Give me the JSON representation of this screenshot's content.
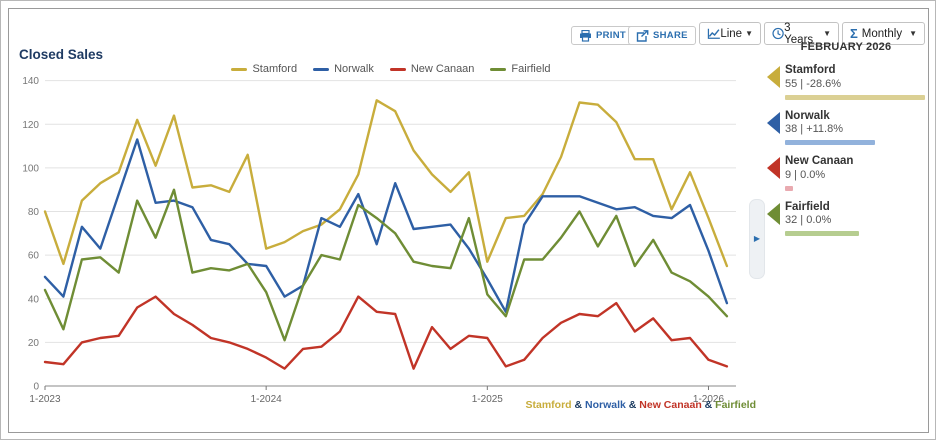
{
  "title": "Closed Sales",
  "toolbar": {
    "print_label": "PRINT",
    "share_label": "SHARE",
    "chart_type_label": "Line",
    "time_range_label": "3 Years",
    "interval_label": "Monthly",
    "accent_color": "#2c6faf"
  },
  "chart_data": {
    "type": "line",
    "title": "Closed Sales",
    "x": [
      "1-2023",
      "2-2023",
      "3-2023",
      "4-2023",
      "5-2023",
      "6-2023",
      "7-2023",
      "8-2023",
      "9-2023",
      "10-2023",
      "11-2023",
      "12-2023",
      "1-2024",
      "2-2024",
      "3-2024",
      "4-2024",
      "5-2024",
      "6-2024",
      "7-2024",
      "8-2024",
      "9-2024",
      "10-2024",
      "11-2024",
      "12-2024",
      "1-2025",
      "2-2025",
      "3-2025",
      "4-2025",
      "5-2025",
      "6-2025",
      "7-2025",
      "8-2025",
      "9-2025",
      "10-2025",
      "11-2025",
      "12-2025",
      "1-2026",
      "2-2026"
    ],
    "x_tick_labels": [
      {
        "index": 0,
        "label": "1-2023"
      },
      {
        "index": 12,
        "label": "1-2024"
      },
      {
        "index": 24,
        "label": "1-2025"
      },
      {
        "index": 36,
        "label": "1-2026"
      }
    ],
    "ylim": [
      0,
      140
    ],
    "y_tick_step": 20,
    "grid": true,
    "legend_position": "top",
    "series": [
      {
        "name": "Stamford",
        "color": "#c8ad3c",
        "values": [
          80,
          56,
          85,
          93,
          98,
          122,
          101,
          124,
          91,
          92,
          89,
          106,
          63,
          66,
          71,
          74,
          81,
          97,
          131,
          126,
          108,
          97,
          89,
          98,
          57,
          77,
          78,
          88,
          105,
          130,
          129,
          121,
          104,
          104,
          81,
          98,
          77,
          55
        ]
      },
      {
        "name": "Norwalk",
        "color": "#2e5fa5",
        "values": [
          50,
          41,
          73,
          63,
          88,
          113,
          84,
          85,
          82,
          67,
          65,
          56,
          55,
          41,
          46,
          77,
          73,
          88,
          65,
          93,
          72,
          73,
          74,
          63,
          49,
          34,
          74,
          87,
          87,
          87,
          84,
          81,
          82,
          78,
          77,
          83,
          62,
          38
        ]
      },
      {
        "name": "New Canaan",
        "color": "#c13427",
        "values": [
          11,
          10,
          20,
          22,
          23,
          36,
          41,
          33,
          28,
          22,
          20,
          17,
          13,
          8,
          17,
          18,
          25,
          41,
          34,
          33,
          8,
          27,
          17,
          23,
          22,
          9,
          12,
          22,
          29,
          33,
          32,
          38,
          25,
          31,
          21,
          22,
          12,
          9
        ]
      },
      {
        "name": "Fairfield",
        "color": "#6f8d35",
        "values": [
          44,
          26,
          58,
          59,
          52,
          85,
          68,
          90,
          52,
          54,
          53,
          56,
          43,
          21,
          46,
          60,
          58,
          83,
          77,
          70,
          57,
          55,
          54,
          77,
          42,
          32,
          58,
          58,
          68,
          80,
          64,
          78,
          55,
          67,
          52,
          48,
          41,
          32
        ]
      }
    ]
  },
  "footer_legend": {
    "separator": "&",
    "separator_color": "#16365c",
    "items": [
      {
        "label": "Stamford",
        "color": "#c8ad3c"
      },
      {
        "label": "Norwalk",
        "color": "#2e5fa5"
      },
      {
        "label": "New Canaan",
        "color": "#c13427"
      },
      {
        "label": "Fairfield",
        "color": "#6f8d35"
      }
    ]
  },
  "side_panel": {
    "heading": "FEBRUARY 2026",
    "entries": [
      {
        "name": "Stamford",
        "value": "55",
        "change": "-28.6%",
        "display": "55 | -28.6%",
        "color": "#c8ad3c",
        "bar_color": "#dbd094",
        "bar_pct": 100
      },
      {
        "name": "Norwalk",
        "value": "38",
        "change": "+11.8%",
        "display": "38 | +11.8%",
        "color": "#2e5fa5",
        "bar_color": "#92b2dc",
        "bar_pct": 64
      },
      {
        "name": "New Canaan",
        "value": "9",
        "change": "0.0%",
        "display": "9 | 0.0%",
        "color": "#c13427",
        "bar_color": "#e9aab0",
        "bar_pct": 6
      },
      {
        "name": "Fairfield",
        "value": "32",
        "change": "0.0%",
        "display": "32 | 0.0%",
        "color": "#6f8d35",
        "bar_color": "#b6cd90",
        "bar_pct": 53
      }
    ]
  }
}
